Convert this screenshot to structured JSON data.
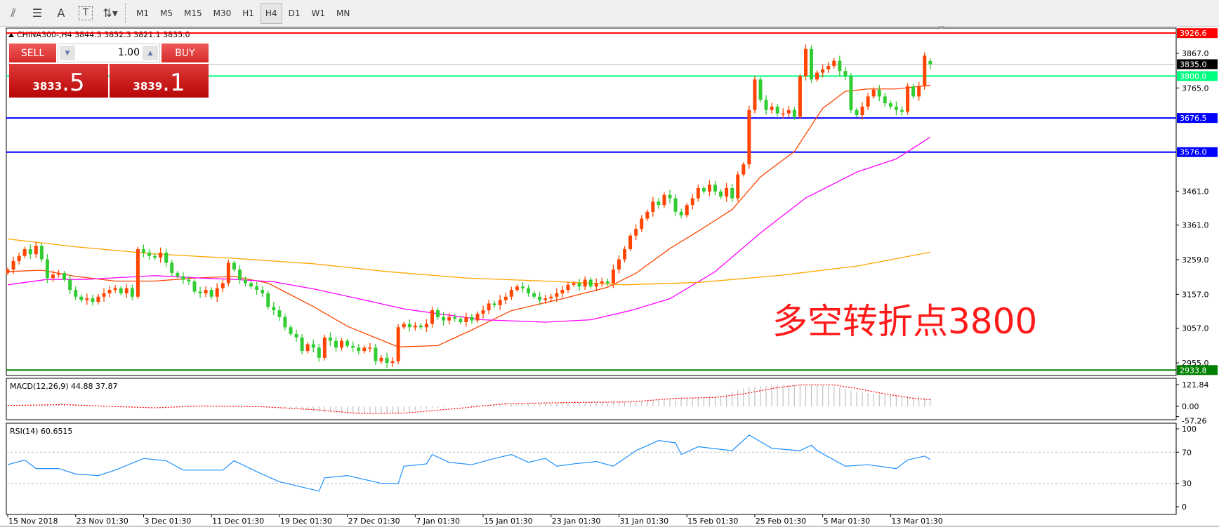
{
  "toolbar": {
    "icons": [
      "fibonacci-expansion-icon",
      "fibonacci-fan-icon",
      "text-icon",
      "text-label-icon",
      "arrows-dropdown-icon"
    ],
    "text_icon_glyph": "A",
    "label_icon_glyph": "T",
    "timeframes": [
      "M1",
      "M5",
      "M15",
      "M30",
      "H1",
      "H4",
      "D1",
      "W1",
      "MN"
    ],
    "active_timeframe": "H4"
  },
  "chart_header": "CHINA300-,H4  3844.5 3852.3 3821.1 3835.0",
  "trade_panel": {
    "sell_label": "SELL",
    "buy_label": "BUY",
    "quantity": "1.00",
    "sell_price_main": "3833",
    "sell_price_frac": ".5",
    "buy_price_main": "3839",
    "buy_price_frac": ".1"
  },
  "annotation": "多空转折点3800",
  "colors": {
    "bull": "#FF4500",
    "bear": "#32CD32",
    "ma_fast": "#FF4500",
    "ma_mid": "#FF00FF",
    "ma_slow": "#FFA500",
    "macd_hist": "#C0C0C0",
    "macd_signal": "#FF0000",
    "rsi": "#1E90FF"
  },
  "chart_data": {
    "type": "candlestick",
    "symbol": "CHINA300-",
    "timeframe": "H4",
    "ylim": [
      2900,
      3940
    ],
    "y_ticks": [
      3867.0,
      3765.0,
      3461.0,
      3361.0,
      3259.0,
      3157.0,
      3057.0,
      2955.0
    ],
    "x_tick_labels": [
      "15 Nov 2018",
      "23 Nov 01:30",
      "3 Dec 01:30",
      "11 Dec 01:30",
      "19 Dec 01:30",
      "27 Dec 01:30",
      "7 Jan 01:30",
      "15 Jan 01:30",
      "23 Jan 01:30",
      "31 Jan 01:30",
      "15 Feb 01:30",
      "25 Feb 01:30",
      "5 Mar 01:30",
      "13 Mar 01:30"
    ],
    "last_bar": {
      "open": 3844.5,
      "high": 3852.3,
      "low": 3821.1,
      "close": 3835.0
    },
    "closes": [
      3230,
      3255,
      3270,
      3290,
      3275,
      3300,
      3260,
      3205,
      3215,
      3220,
      3200,
      3170,
      3150,
      3140,
      3145,
      3135,
      3150,
      3160,
      3170,
      3175,
      3160,
      3175,
      3150,
      3290,
      3280,
      3270,
      3265,
      3280,
      3250,
      3220,
      3210,
      3200,
      3195,
      3165,
      3160,
      3170,
      3150,
      3175,
      3190,
      3250,
      3230,
      3200,
      3190,
      3180,
      3170,
      3160,
      3120,
      3110,
      3090,
      3060,
      3040,
      3030,
      2990,
      3010,
      3000,
      2970,
      3030,
      3020,
      3000,
      3020,
      3005,
      3000,
      2990,
      3000,
      3000,
      2960,
      2970,
      2955,
      2960,
      3060,
      3070,
      3060,
      3065,
      3060,
      3070,
      3110,
      3090,
      3080,
      3090,
      3085,
      3075,
      3090,
      3080,
      3100,
      3110,
      3130,
      3125,
      3140,
      3150,
      3170,
      3180,
      3175,
      3160,
      3150,
      3140,
      3145,
      3150,
      3160,
      3170,
      3185,
      3190,
      3180,
      3200,
      3180,
      3190,
      3195,
      3190,
      3230,
      3260,
      3290,
      3330,
      3350,
      3380,
      3400,
      3430,
      3420,
      3450,
      3440,
      3400,
      3390,
      3420,
      3440,
      3470,
      3460,
      3480,
      3460,
      3445,
      3470,
      3440,
      3510,
      3540,
      3700,
      3790,
      3730,
      3700,
      3710,
      3690,
      3690,
      3700,
      3680,
      3800,
      3880,
      3790,
      3810,
      3820,
      3830,
      3845,
      3815,
      3800,
      3700,
      3685,
      3710,
      3740,
      3760,
      3740,
      3720,
      3710,
      3700,
      3695,
      3770,
      3740,
      3770,
      3860,
      3835
    ],
    "first_open": 3220,
    "moving_averages": [
      {
        "color_key": "ma_fast",
        "points": [
          [
            0,
            3224
          ],
          [
            6,
            3228
          ],
          [
            12,
            3210
          ],
          [
            19,
            3196
          ],
          [
            26,
            3196
          ],
          [
            33,
            3205
          ],
          [
            40,
            3210
          ],
          [
            46,
            3190
          ],
          [
            54,
            3121
          ],
          [
            60,
            3063
          ],
          [
            65,
            3029
          ],
          [
            69,
            3002
          ],
          [
            76,
            3006
          ],
          [
            82,
            3052
          ],
          [
            89,
            3109
          ],
          [
            98,
            3144
          ],
          [
            106,
            3178
          ],
          [
            111,
            3219
          ],
          [
            117,
            3292
          ],
          [
            122,
            3343
          ],
          [
            128,
            3407
          ],
          [
            133,
            3503
          ],
          [
            139,
            3578
          ],
          [
            144,
            3705
          ],
          [
            148,
            3755
          ],
          [
            152,
            3762
          ],
          [
            157,
            3762
          ],
          [
            163,
            3773
          ]
        ]
      },
      {
        "color_key": "ma_mid",
        "points": [
          [
            0,
            3185
          ],
          [
            7,
            3201
          ],
          [
            14,
            3201
          ],
          [
            26,
            3212
          ],
          [
            34,
            3205
          ],
          [
            40,
            3201
          ],
          [
            47,
            3194
          ],
          [
            54,
            3173
          ],
          [
            62,
            3144
          ],
          [
            70,
            3114
          ],
          [
            76,
            3100
          ],
          [
            84,
            3082
          ],
          [
            95,
            3075
          ],
          [
            103,
            3082
          ],
          [
            110,
            3109
          ],
          [
            117,
            3144
          ],
          [
            125,
            3224
          ],
          [
            133,
            3338
          ],
          [
            141,
            3441
          ],
          [
            150,
            3517
          ],
          [
            157,
            3556
          ],
          [
            163,
            3620
          ]
        ]
      },
      {
        "color_key": "ma_slow",
        "points": [
          [
            0,
            3320
          ],
          [
            12,
            3297
          ],
          [
            26,
            3276
          ],
          [
            40,
            3263
          ],
          [
            54,
            3247
          ],
          [
            67,
            3224
          ],
          [
            81,
            3205
          ],
          [
            95,
            3196
          ],
          [
            109,
            3185
          ],
          [
            122,
            3192
          ],
          [
            136,
            3212
          ],
          [
            150,
            3240
          ],
          [
            163,
            3281
          ]
        ]
      }
    ],
    "horizontal_lines": [
      {
        "price": 3926.6,
        "label": "3926.6",
        "color": "#FF0000",
        "label_bg": "#FF0000",
        "label_fg": "#FFFFFF",
        "width": 2
      },
      {
        "price": 3835.0,
        "label": "3835.0",
        "color": "#C0C0C0",
        "label_bg": "#000000",
        "label_fg": "#FFFFFF",
        "width": 1
      },
      {
        "price": 3800.0,
        "label": "3800.0",
        "color": "#00FF7F",
        "label_bg": "#00FF7F",
        "label_fg": "#FFFFFF",
        "width": 2
      },
      {
        "price": 3676.5,
        "label": "3676.5",
        "color": "#0000FF",
        "label_bg": "#0000FF",
        "label_fg": "#FFFFFF",
        "width": 2
      },
      {
        "price": 3576.0,
        "label": "3576.0",
        "color": "#0000FF",
        "label_bg": "#0000FF",
        "label_fg": "#FFFFFF",
        "width": 2
      },
      {
        "price": 2933.8,
        "label": "2933.8",
        "color": "#008000",
        "label_bg": "#008000",
        "label_fg": "#FFFFFF",
        "width": 2
      }
    ],
    "macd": {
      "title": "MACD(12,26,9) 44.88 37.87",
      "ylim": [
        -57.26,
        121.84
      ],
      "y_ticks": [
        "121.84",
        "0.00",
        "-57.26"
      ],
      "histogram": [
        [
          0,
          5
        ],
        [
          10,
          8
        ],
        [
          20,
          -5
        ],
        [
          28,
          5
        ],
        [
          40,
          3
        ],
        [
          50,
          -10
        ],
        [
          55,
          -30
        ],
        [
          62,
          -40
        ],
        [
          68,
          -40
        ],
        [
          72,
          -20
        ],
        [
          80,
          5
        ],
        [
          90,
          15
        ],
        [
          100,
          22
        ],
        [
          110,
          25
        ],
        [
          118,
          45
        ],
        [
          126,
          60
        ],
        [
          130,
          100
        ],
        [
          135,
          120
        ],
        [
          142,
          122
        ],
        [
          146,
          118
        ],
        [
          150,
          80
        ],
        [
          155,
          65
        ],
        [
          160,
          55
        ],
        [
          163,
          44.88
        ]
      ],
      "signal": [
        [
          0,
          5
        ],
        [
          10,
          10
        ],
        [
          18,
          0
        ],
        [
          26,
          -8
        ],
        [
          34,
          2
        ],
        [
          45,
          -2
        ],
        [
          55,
          -20
        ],
        [
          62,
          -40
        ],
        [
          70,
          -38
        ],
        [
          80,
          -10
        ],
        [
          88,
          15
        ],
        [
          100,
          22
        ],
        [
          110,
          25
        ],
        [
          118,
          45
        ],
        [
          125,
          50
        ],
        [
          130,
          70
        ],
        [
          136,
          105
        ],
        [
          140,
          120
        ],
        [
          146,
          120
        ],
        [
          150,
          100
        ],
        [
          155,
          70
        ],
        [
          160,
          45
        ],
        [
          163,
          37.87
        ]
      ]
    },
    "rsi": {
      "title": "RSI(14) 60.6515",
      "ylim": [
        0,
        100
      ],
      "y_ticks": [
        "100",
        "70",
        "30",
        "0"
      ],
      "levels": [
        70,
        30
      ],
      "points": [
        [
          0,
          54
        ],
        [
          3,
          60
        ],
        [
          5,
          49
        ],
        [
          9,
          49
        ],
        [
          12,
          42
        ],
        [
          16,
          40
        ],
        [
          19,
          47
        ],
        [
          24,
          62
        ],
        [
          28,
          59
        ],
        [
          31,
          47
        ],
        [
          38,
          47
        ],
        [
          40,
          59
        ],
        [
          44,
          45
        ],
        [
          48,
          32
        ],
        [
          51,
          27
        ],
        [
          55,
          20
        ],
        [
          56,
          37
        ],
        [
          60,
          40
        ],
        [
          66,
          30
        ],
        [
          69,
          30
        ],
        [
          70,
          52
        ],
        [
          74,
          55
        ],
        [
          75,
          67
        ],
        [
          78,
          57
        ],
        [
          82,
          54
        ],
        [
          86,
          62
        ],
        [
          89,
          67
        ],
        [
          92,
          57
        ],
        [
          95,
          62
        ],
        [
          97,
          52
        ],
        [
          100,
          55
        ],
        [
          104,
          58
        ],
        [
          107,
          52
        ],
        [
          111,
          72
        ],
        [
          115,
          85
        ],
        [
          118,
          82
        ],
        [
          119,
          67
        ],
        [
          122,
          77
        ],
        [
          128,
          72
        ],
        [
          131,
          92
        ],
        [
          135,
          75
        ],
        [
          140,
          72
        ],
        [
          142,
          79
        ],
        [
          143,
          72
        ],
        [
          148,
          52
        ],
        [
          152,
          54
        ],
        [
          157,
          49
        ],
        [
          159,
          60
        ],
        [
          162,
          65
        ],
        [
          163,
          60.65
        ]
      ]
    }
  }
}
